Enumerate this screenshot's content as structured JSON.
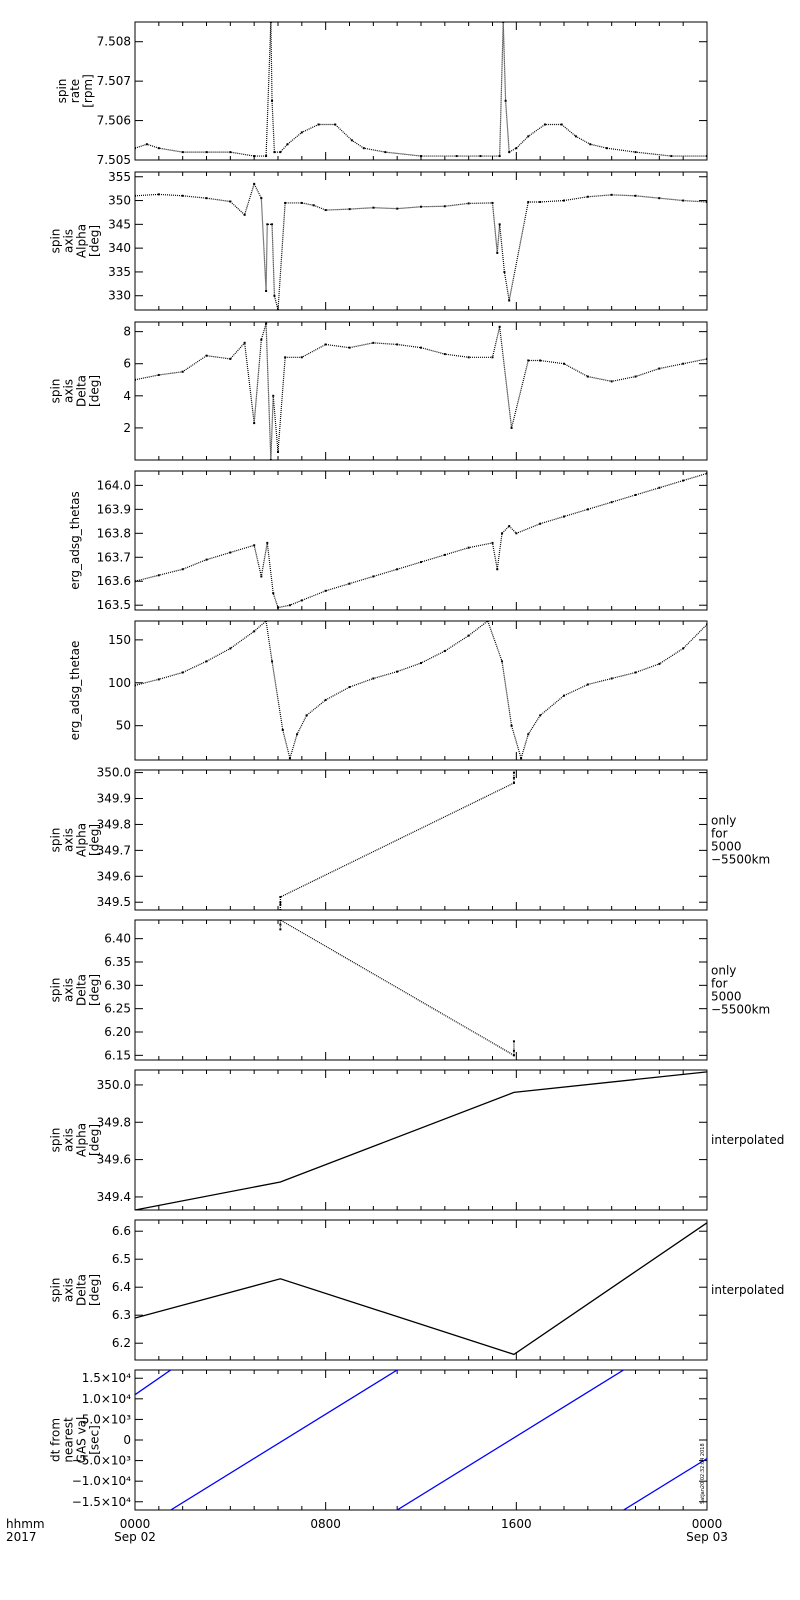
{
  "x_axis": {
    "corner_label": [
      "hhmm",
      "2017"
    ],
    "ticks": [
      {
        "hour": 0,
        "label": [
          "0000",
          "Sep 02"
        ]
      },
      {
        "hour": 8,
        "label": [
          "0800",
          ""
        ]
      },
      {
        "hour": 16,
        "label": [
          "1600",
          ""
        ]
      },
      {
        "hour": 24,
        "label": [
          "0000",
          "Sep 03"
        ]
      }
    ],
    "range_hours": [
      0,
      24
    ]
  },
  "stamp": "SatJan20 02:32:04 2018",
  "colors": {
    "ink": "#000000",
    "highlight": "#0000ff"
  },
  "chart_data": [
    {
      "type": "scatter",
      "ylabel": [
        "spin",
        "rate",
        "[rpm]"
      ],
      "ylim": [
        7.505,
        7.5085
      ],
      "yticks": [
        7.505,
        7.506,
        7.507,
        7.508
      ],
      "yticklabels": [
        "7.505",
        "7.506",
        "7.507",
        "7.508"
      ],
      "side_label": [],
      "series": [
        {
          "color": "#000000",
          "points": [
            [
              0,
              7.5053
            ],
            [
              0.5,
              7.5054
            ],
            [
              1,
              7.5053
            ],
            [
              2,
              7.5052
            ],
            [
              3,
              7.5052
            ],
            [
              4,
              7.5052
            ],
            [
              5,
              7.5051
            ],
            [
              5.5,
              7.5051
            ],
            [
              5.7,
              7.5085
            ],
            [
              5.75,
              7.5065
            ],
            [
              5.85,
              7.5052
            ],
            [
              6.1,
              7.5052
            ],
            [
              6.4,
              7.5054
            ],
            [
              7,
              7.5057
            ],
            [
              7.7,
              7.5059
            ],
            [
              8.4,
              7.5059
            ],
            [
              9.1,
              7.5055
            ],
            [
              9.6,
              7.5053
            ],
            [
              10.5,
              7.5052
            ],
            [
              12,
              7.5051
            ],
            [
              13.5,
              7.5051
            ],
            [
              14.5,
              7.5051
            ],
            [
              15.3,
              7.5051
            ],
            [
              15.45,
              7.5085
            ],
            [
              15.55,
              7.5065
            ],
            [
              15.7,
              7.5052
            ],
            [
              16,
              7.5053
            ],
            [
              16.5,
              7.5056
            ],
            [
              17.2,
              7.5059
            ],
            [
              17.9,
              7.5059
            ],
            [
              18.5,
              7.5056
            ],
            [
              19.1,
              7.5054
            ],
            [
              19.8,
              7.5053
            ],
            [
              21,
              7.5052
            ],
            [
              22.5,
              7.5051
            ],
            [
              24,
              7.5051
            ]
          ]
        }
      ]
    },
    {
      "type": "scatter",
      "ylabel": [
        "spin",
        "axis",
        "Alpha",
        "[deg]"
      ],
      "ylim": [
        327,
        356
      ],
      "yticks": [
        330,
        335,
        340,
        345,
        350,
        355
      ],
      "yticklabels": [
        "330",
        "335",
        "340",
        "345",
        "350",
        "355"
      ],
      "side_label": [],
      "series": [
        {
          "color": "#000000",
          "points": [
            [
              0,
              351
            ],
            [
              1,
              351.3
            ],
            [
              2,
              351
            ],
            [
              3,
              350.5
            ],
            [
              4,
              349.8
            ],
            [
              4.6,
              347
            ],
            [
              5,
              353.5
            ],
            [
              5.3,
              350.5
            ],
            [
              5.5,
              331
            ],
            [
              5.55,
              345
            ],
            [
              5.75,
              345
            ],
            [
              5.85,
              330
            ],
            [
              6.0,
              327
            ],
            [
              6.3,
              349.5
            ],
            [
              7,
              349.5
            ],
            [
              7.5,
              349
            ],
            [
              8,
              348
            ],
            [
              9,
              348.2
            ],
            [
              10,
              348.5
            ],
            [
              11,
              348.3
            ],
            [
              12,
              348.7
            ],
            [
              13,
              348.8
            ],
            [
              14,
              349.4
            ],
            [
              15,
              349.5
            ],
            [
              15.2,
              339
            ],
            [
              15.3,
              345
            ],
            [
              15.5,
              335
            ],
            [
              15.7,
              329
            ],
            [
              16.5,
              349.7
            ],
            [
              17,
              349.7
            ],
            [
              18,
              350
            ],
            [
              19,
              350.8
            ],
            [
              20,
              351.2
            ],
            [
              21,
              351
            ],
            [
              22,
              350.5
            ],
            [
              23,
              350
            ],
            [
              24,
              349.7
            ]
          ]
        }
      ]
    },
    {
      "type": "scatter",
      "ylabel": [
        "spin",
        "axis",
        "Delta",
        "[deg]"
      ],
      "ylim": [
        0,
        8.6
      ],
      "yticks": [
        2,
        4,
        6,
        8
      ],
      "yticklabels": [
        "2",
        "4",
        "6",
        "8"
      ],
      "side_label": [],
      "series": [
        {
          "color": "#000000",
          "points": [
            [
              0,
              5
            ],
            [
              1,
              5.3
            ],
            [
              2,
              5.5
            ],
            [
              3,
              6.5
            ],
            [
              4,
              6.3
            ],
            [
              4.6,
              7.3
            ],
            [
              5,
              2.3
            ],
            [
              5.3,
              7.5
            ],
            [
              5.5,
              8.5
            ],
            [
              5.7,
              0
            ],
            [
              5.8,
              4
            ],
            [
              6.0,
              0.5
            ],
            [
              6.3,
              6.4
            ],
            [
              7,
              6.4
            ],
            [
              8,
              7.2
            ],
            [
              9,
              7
            ],
            [
              10,
              7.3
            ],
            [
              11,
              7.2
            ],
            [
              12,
              7
            ],
            [
              13,
              6.6
            ],
            [
              14,
              6.4
            ],
            [
              15,
              6.4
            ],
            [
              15.3,
              8.3
            ],
            [
              15.8,
              2
            ],
            [
              16.5,
              6.2
            ],
            [
              17,
              6.2
            ],
            [
              18,
              6
            ],
            [
              19,
              5.2
            ],
            [
              20,
              4.9
            ],
            [
              21,
              5.2
            ],
            [
              22,
              5.7
            ],
            [
              23,
              6
            ],
            [
              24,
              6.3
            ]
          ]
        }
      ]
    },
    {
      "type": "scatter",
      "ylabel": [
        "erg_adsg_thetas"
      ],
      "ylim": [
        163.48,
        164.06
      ],
      "yticks": [
        163.5,
        163.6,
        163.7,
        163.8,
        163.9,
        164.0
      ],
      "yticklabels": [
        "163.5",
        "163.6",
        "163.7",
        "163.8",
        "163.9",
        "164.0"
      ],
      "side_label": [],
      "series": [
        {
          "color": "#000000",
          "points": [
            [
              0,
              163.6
            ],
            [
              1,
              163.625
            ],
            [
              2,
              163.65
            ],
            [
              3,
              163.69
            ],
            [
              4,
              163.72
            ],
            [
              5,
              163.75
            ],
            [
              5.3,
              163.62
            ],
            [
              5.55,
              163.76
            ],
            [
              5.8,
              163.55
            ],
            [
              6.0,
              163.49
            ],
            [
              6.5,
              163.5
            ],
            [
              7,
              163.52
            ],
            [
              8,
              163.56
            ],
            [
              9,
              163.59
            ],
            [
              10,
              163.62
            ],
            [
              11,
              163.65
            ],
            [
              12,
              163.68
            ],
            [
              13,
              163.71
            ],
            [
              14,
              163.74
            ],
            [
              15,
              163.76
            ],
            [
              15.2,
              163.65
            ],
            [
              15.4,
              163.8
            ],
            [
              15.7,
              163.83
            ],
            [
              16.0,
              163.8
            ],
            [
              17,
              163.84
            ],
            [
              18,
              163.87
            ],
            [
              19,
              163.9
            ],
            [
              20,
              163.93
            ],
            [
              21,
              163.96
            ],
            [
              22,
              163.99
            ],
            [
              23,
              164.02
            ],
            [
              24,
              164.05
            ]
          ]
        }
      ]
    },
    {
      "type": "scatter",
      "ylabel": [
        "erg_adsg_thetae"
      ],
      "ylim": [
        10,
        172
      ],
      "yticks": [
        50,
        100,
        150
      ],
      "yticklabels": [
        "50",
        "100",
        "150"
      ],
      "side_label": [],
      "series": [
        {
          "color": "#000000",
          "points": [
            [
              0,
              97
            ],
            [
              1,
              104
            ],
            [
              2,
              112
            ],
            [
              3,
              125
            ],
            [
              4,
              140
            ],
            [
              5,
              160
            ],
            [
              5.5,
              172
            ],
            [
              5.75,
              125
            ],
            [
              6.2,
              45
            ],
            [
              6.5,
              12
            ],
            [
              6.8,
              40
            ],
            [
              7.2,
              62
            ],
            [
              8,
              80
            ],
            [
              9,
              95
            ],
            [
              10,
              105
            ],
            [
              11,
              113
            ],
            [
              12,
              123
            ],
            [
              13,
              137
            ],
            [
              14,
              155
            ],
            [
              14.8,
              172
            ],
            [
              15.4,
              125
            ],
            [
              15.8,
              50
            ],
            [
              16.2,
              12
            ],
            [
              16.5,
              40
            ],
            [
              17,
              62
            ],
            [
              18,
              85
            ],
            [
              19,
              98
            ],
            [
              20,
              105
            ],
            [
              21,
              112
            ],
            [
              22,
              122
            ],
            [
              23,
              140
            ],
            [
              24,
              168
            ]
          ]
        }
      ]
    },
    {
      "type": "scatter",
      "ylabel": [
        "spin",
        "axis",
        "Alpha",
        "[deg]"
      ],
      "ylim": [
        349.47,
        350.01
      ],
      "yticks": [
        349.5,
        349.6,
        349.7,
        349.8,
        349.9,
        350.0
      ],
      "yticklabels": [
        "349.5",
        "349.6",
        "349.7",
        "349.8",
        "349.9",
        "350.0"
      ],
      "side_label": [
        "only",
        "for",
        "5000",
        "−5500km"
      ],
      "series": [
        {
          "color": "#000000",
          "points": [
            [
              6.1,
              349.47
            ],
            [
              6.1,
              349.49
            ],
            [
              6.1,
              349.5
            ],
            [
              6.1,
              349.52
            ],
            [
              15.9,
              349.96
            ],
            [
              15.9,
              349.98
            ],
            [
              15.9,
              350.0
            ]
          ]
        }
      ]
    },
    {
      "type": "scatter",
      "ylabel": [
        "spin",
        "axis",
        "Delta",
        "[deg]"
      ],
      "ylim": [
        6.14,
        6.44
      ],
      "yticks": [
        6.15,
        6.2,
        6.25,
        6.3,
        6.35,
        6.4
      ],
      "yticklabels": [
        "6.15",
        "6.20",
        "6.25",
        "6.30",
        "6.35",
        "6.40"
      ],
      "side_label": [
        "only",
        "for",
        "5000",
        "−5500km"
      ],
      "series": [
        {
          "color": "#000000",
          "points": [
            [
              6.1,
              6.42
            ],
            [
              6.1,
              6.43
            ],
            [
              6.1,
              6.44
            ],
            [
              15.9,
              6.15
            ],
            [
              15.9,
              6.16
            ],
            [
              15.9,
              6.18
            ]
          ]
        }
      ]
    },
    {
      "type": "line",
      "ylabel": [
        "spin",
        "axis",
        "Alpha",
        "[deg]"
      ],
      "ylim": [
        349.33,
        350.08
      ],
      "yticks": [
        349.4,
        349.6,
        349.8,
        350.0
      ],
      "yticklabels": [
        "349.4",
        "349.6",
        "349.8",
        "350.0"
      ],
      "side_label": [
        "interpolated"
      ],
      "series": [
        {
          "color": "#000000",
          "points": [
            [
              0,
              349.33
            ],
            [
              6.1,
              349.48
            ],
            [
              15.9,
              349.96
            ],
            [
              24,
              350.07
            ]
          ]
        }
      ]
    },
    {
      "type": "line",
      "ylabel": [
        "spin",
        "axis",
        "Delta",
        "[deg]"
      ],
      "ylim": [
        6.14,
        6.64
      ],
      "yticks": [
        6.2,
        6.3,
        6.4,
        6.5,
        6.6
      ],
      "yticklabels": [
        "6.2",
        "6.3",
        "6.4",
        "6.5",
        "6.6"
      ],
      "side_label": [
        "interpolated"
      ],
      "series": [
        {
          "color": "#000000",
          "points": [
            [
              0,
              6.29
            ],
            [
              6.1,
              6.43
            ],
            [
              15.9,
              6.16
            ],
            [
              24,
              6.63
            ]
          ]
        }
      ]
    },
    {
      "type": "line",
      "ylabel": [
        "dt from",
        "nearest",
        "GAS val",
        "[sec]"
      ],
      "ylim": [
        -17000,
        17000
      ],
      "yticks": [
        -15000,
        -10000,
        -5000,
        0,
        5000,
        10000,
        15000
      ],
      "yticklabels": [
        "−1.5×10⁴",
        "−1.0×10⁴",
        "−5.0×10³",
        "0",
        "5.0×10³",
        "1.0×10⁴",
        "1.5×10⁴"
      ],
      "side_label": [],
      "series": [
        {
          "color": "#0000ff",
          "points": [
            [
              0,
              11000
            ],
            [
              1.5,
              17000
            ]
          ]
        },
        {
          "color": "#0000ff",
          "points": [
            [
              1.5,
              -17000
            ],
            [
              11.0,
              17000
            ]
          ]
        },
        {
          "color": "#0000ff",
          "points": [
            [
              11.0,
              -17000
            ],
            [
              20.5,
              17000
            ]
          ]
        },
        {
          "color": "#0000ff",
          "points": [
            [
              20.5,
              -17000
            ],
            [
              24,
              -4500
            ]
          ]
        }
      ]
    }
  ]
}
